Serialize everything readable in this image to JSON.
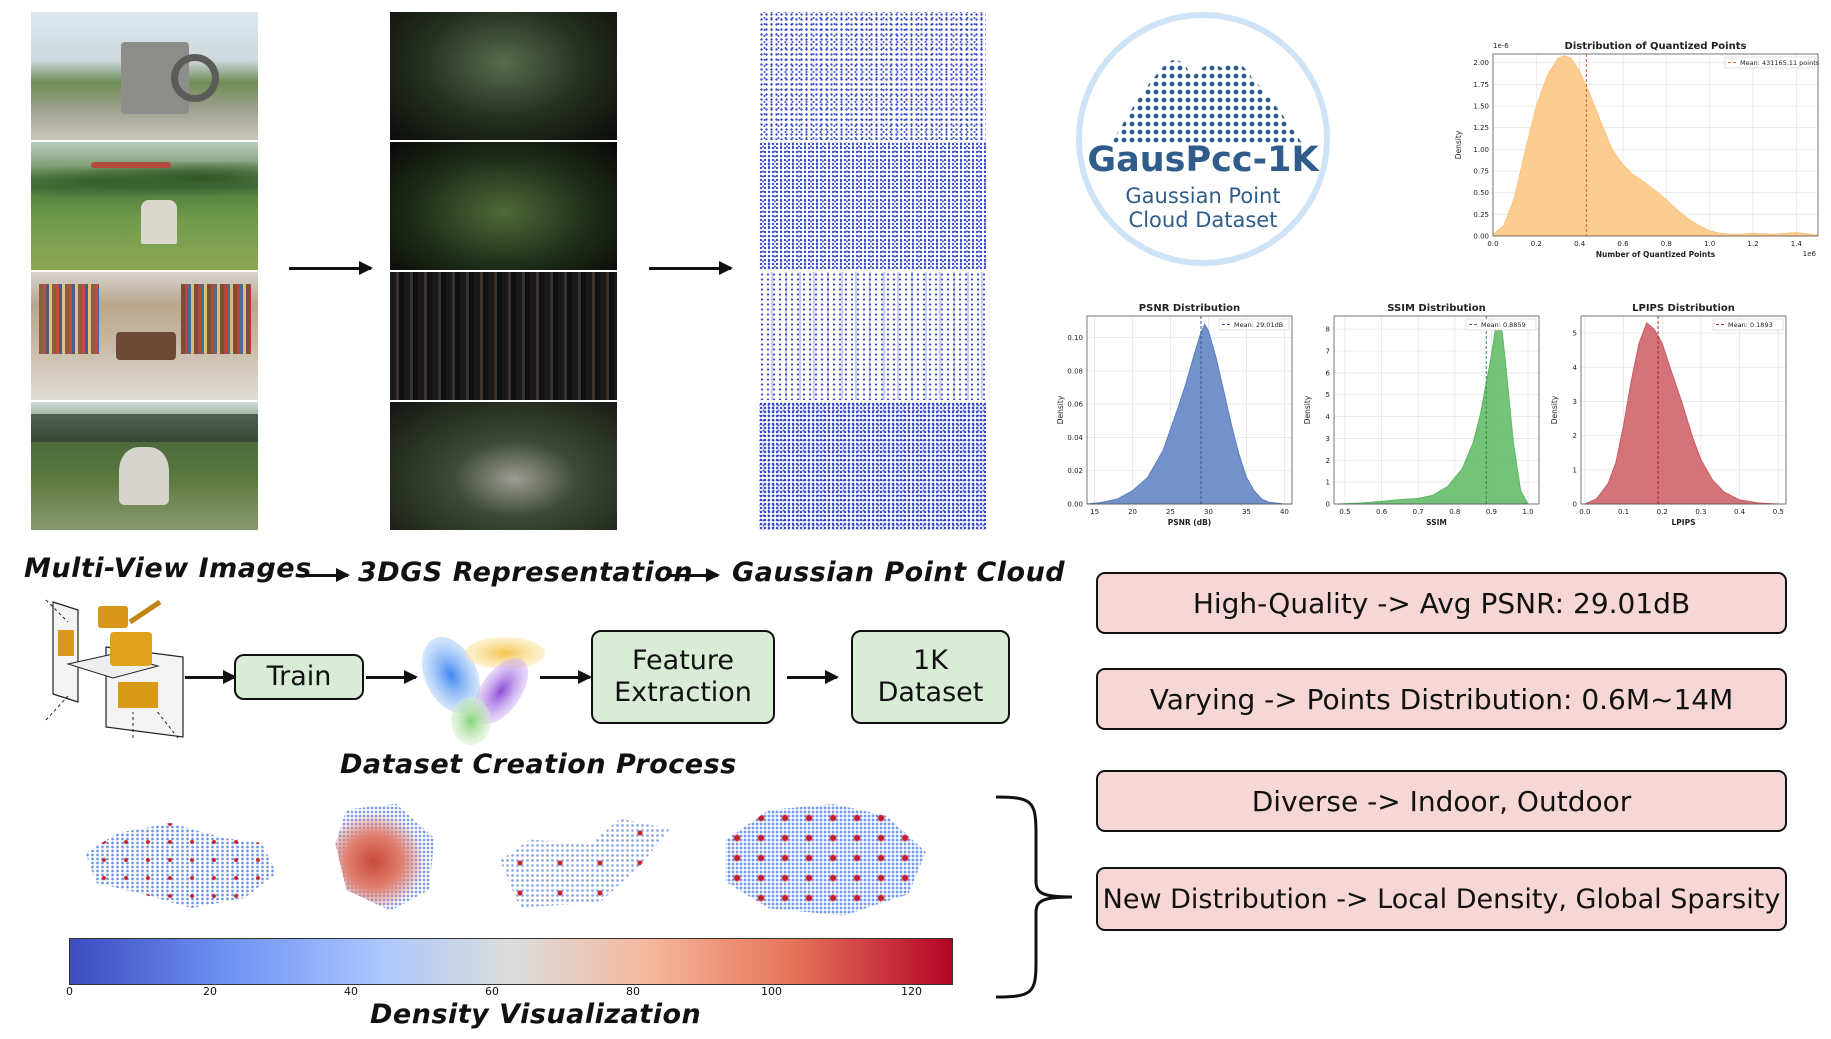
{
  "pipeline": {
    "label_images": "Multi-View Images",
    "label_3dgs": "3DGS Representation",
    "label_points": "Gaussian Point Cloud"
  },
  "process": {
    "train": "Train",
    "feature": "Feature\nExtraction",
    "dataset": "1K\nDataset",
    "caption": "Dataset Creation Process"
  },
  "density": {
    "caption": "Density Visualization",
    "ticks": [
      "0",
      "20",
      "40",
      "60",
      "80",
      "100",
      "120"
    ]
  },
  "logo": {
    "name": "GausPcc-1K",
    "sub1": "Gaussian Point",
    "sub2": "Cloud Dataset"
  },
  "features": [
    "High-Quality -> Avg PSNR: 29.01dB",
    "Varying -> Points Distribution: 0.6M~14M",
    "Diverse -> Indoor, Outdoor",
    "New Distribution -> Local Density, Global Sparsity"
  ],
  "colors": {
    "orange": "#fbc47e",
    "blue": "#5b7fbf",
    "green": "#5cb862",
    "red": "#cc5b61",
    "pink_box": "#f7d7d5",
    "green_box": "#d8ecd6",
    "logo_blue": "#2f5c8a"
  },
  "chart_data": [
    {
      "type": "area",
      "title": "Distribution of Quantized Points",
      "xlabel": "Number of Quantized Points",
      "ylabel": "Density",
      "x_scale_note": "1e6",
      "y_scale_note": "1e-6",
      "legend": "Mean: 431165.11 points",
      "mean": 0.431,
      "xlim": [
        0.0,
        1.5
      ],
      "ylim": [
        0.0,
        2.1
      ],
      "xticks": [
        "0.0",
        "0.2",
        "0.4",
        "0.6",
        "0.8",
        "1.0",
        "1.2",
        "1.4"
      ],
      "yticks": [
        "0.00",
        "0.25",
        "0.50",
        "0.75",
        "1.00",
        "1.25",
        "1.50",
        "1.75",
        "2.00"
      ],
      "x": [
        0.0,
        0.05,
        0.1,
        0.15,
        0.2,
        0.25,
        0.3,
        0.33,
        0.36,
        0.4,
        0.45,
        0.5,
        0.55,
        0.6,
        0.65,
        0.7,
        0.75,
        0.8,
        0.85,
        0.9,
        0.95,
        1.0,
        1.05,
        1.1,
        1.15,
        1.2,
        1.3,
        1.35,
        1.4,
        1.5
      ],
      "y": [
        0.02,
        0.12,
        0.45,
        1.0,
        1.5,
        1.85,
        2.05,
        2.08,
        2.05,
        1.9,
        1.62,
        1.3,
        1.0,
        0.82,
        0.7,
        0.62,
        0.52,
        0.42,
        0.3,
        0.2,
        0.12,
        0.06,
        0.03,
        0.02,
        0.02,
        0.03,
        0.02,
        0.03,
        0.04,
        0.01
      ]
    },
    {
      "type": "area",
      "title": "PSNR Distribution",
      "xlabel": "PSNR (dB)",
      "ylabel": "Density",
      "legend": "Mean: 29.01dB",
      "mean": 29.01,
      "xlim": [
        14,
        41
      ],
      "ylim": [
        0.0,
        0.113
      ],
      "xticks": [
        "15",
        "20",
        "25",
        "30",
        "35",
        "40"
      ],
      "yticks": [
        "0.00",
        "0.02",
        "0.04",
        "0.06",
        "0.08",
        "0.10"
      ],
      "x": [
        14,
        16,
        18,
        20,
        22,
        24,
        25,
        26,
        27,
        28,
        29,
        29.5,
        30,
        31,
        32,
        33,
        34,
        35,
        36,
        37,
        38,
        40,
        41
      ],
      "y": [
        0.0,
        0.001,
        0.003,
        0.008,
        0.016,
        0.032,
        0.045,
        0.058,
        0.072,
        0.088,
        0.103,
        0.108,
        0.104,
        0.088,
        0.068,
        0.048,
        0.03,
        0.016,
        0.008,
        0.003,
        0.001,
        0.0,
        0.0
      ]
    },
    {
      "type": "area",
      "title": "SSIM Distribution",
      "xlabel": "SSIM",
      "ylabel": "Density",
      "legend": "Mean: 0.8859",
      "mean": 0.8859,
      "xlim": [
        0.47,
        1.03
      ],
      "ylim": [
        0.0,
        8.6
      ],
      "xticks": [
        "0.5",
        "0.6",
        "0.7",
        "0.8",
        "0.9",
        "1.0"
      ],
      "yticks": [
        "0",
        "1",
        "2",
        "3",
        "4",
        "5",
        "6",
        "7",
        "8"
      ],
      "x": [
        0.48,
        0.55,
        0.6,
        0.65,
        0.7,
        0.74,
        0.78,
        0.82,
        0.85,
        0.87,
        0.89,
        0.9,
        0.91,
        0.92,
        0.93,
        0.94,
        0.96,
        0.98,
        1.0
      ],
      "y": [
        0.0,
        0.05,
        0.12,
        0.2,
        0.25,
        0.4,
        0.8,
        1.6,
        2.8,
        4.1,
        5.9,
        6.8,
        7.9,
        8.3,
        7.8,
        6.2,
        2.8,
        0.6,
        0.0
      ]
    },
    {
      "type": "area",
      "title": "LPIPS Distribution",
      "xlabel": "LPIPS",
      "ylabel": "Density",
      "legend": "Mean: 0.1893",
      "mean": 0.1893,
      "xlim": [
        -0.01,
        0.52
      ],
      "ylim": [
        0.0,
        5.5
      ],
      "xticks": [
        "0.0",
        "0.1",
        "0.2",
        "0.3",
        "0.4",
        "0.5"
      ],
      "yticks": [
        "0",
        "1",
        "2",
        "3",
        "4",
        "5"
      ],
      "x": [
        0.0,
        0.03,
        0.06,
        0.08,
        0.1,
        0.12,
        0.14,
        0.16,
        0.18,
        0.2,
        0.22,
        0.25,
        0.28,
        0.3,
        0.33,
        0.36,
        0.4,
        0.45,
        0.5
      ],
      "y": [
        0.0,
        0.15,
        0.6,
        1.2,
        2.3,
        3.6,
        4.7,
        5.3,
        5.1,
        4.7,
        4.0,
        3.0,
        1.9,
        1.3,
        0.7,
        0.35,
        0.12,
        0.03,
        0.0
      ]
    }
  ]
}
